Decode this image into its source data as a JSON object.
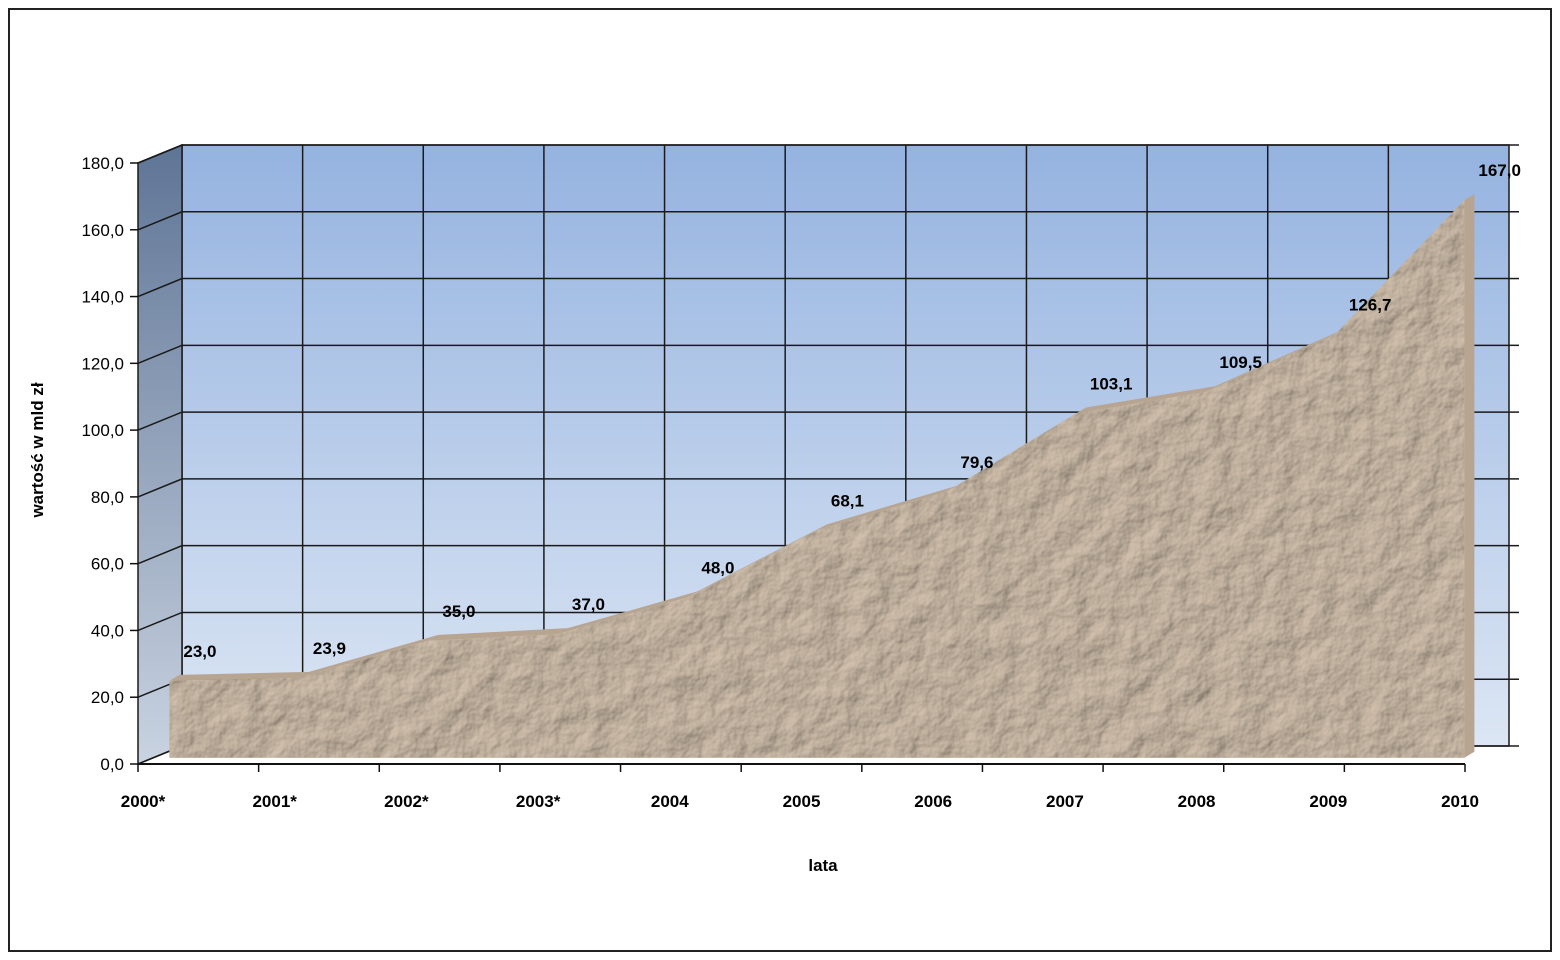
{
  "chart_data": {
    "type": "area",
    "categories": [
      "2000*",
      "2001*",
      "2002*",
      "2003*",
      "2004",
      "2005",
      "2006",
      "2007",
      "2008",
      "2009",
      "2010"
    ],
    "values": [
      23.0,
      23.9,
      35.0,
      37.0,
      48.0,
      68.1,
      79.6,
      103.1,
      109.5,
      126.7,
      167.0
    ],
    "data_labels": [
      "23,0",
      "23,9",
      "35,0",
      "37,0",
      "48,0",
      "68,1",
      "79,6",
      "103,1",
      "109,5",
      "126,7",
      "167,0"
    ],
    "xlabel": "lata",
    "ylabel": "wartość w mld zł",
    "ylim": [
      0,
      180
    ],
    "yticks": [
      0,
      20,
      40,
      60,
      80,
      100,
      120,
      140,
      160,
      180
    ],
    "ytick_labels": [
      "0,0",
      "20,0",
      "40,0",
      "60,0",
      "80,0",
      "100,0",
      "120,0",
      "140,0",
      "160,0",
      "180,0"
    ],
    "grid": true,
    "legend": "none",
    "style": "3d",
    "colors": {
      "back_wall_top": "#95B3E0",
      "back_wall_bottom": "#DCE6F4",
      "side_wall_top": "#5F7596",
      "side_wall_bottom": "#C9D3E1",
      "area_fill": "#D6C4B0",
      "area_shadow": "#B8A591",
      "gridline": "#1a1a1a"
    }
  }
}
